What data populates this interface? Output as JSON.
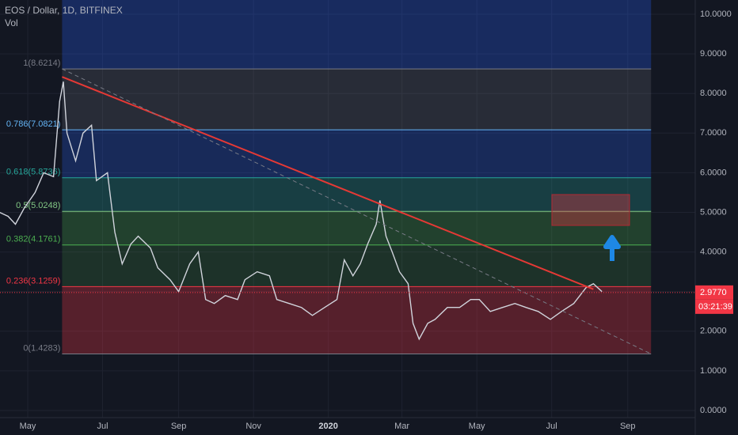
{
  "chart_data": {
    "type": "line",
    "title": "EOS / Dollar, 1D, BITFINEX",
    "subtitle": "Vol",
    "series": [
      {
        "name": "EOS / Dollar",
        "color": "#d1d4dc",
        "x": [
          -23,
          -16,
          -10,
          -3,
          6,
          13,
          21,
          26,
          29,
          32,
          39,
          45,
          52,
          56,
          65,
          71,
          77,
          84,
          90,
          100,
          106,
          116,
          123,
          132,
          139,
          145,
          152,
          161,
          171,
          177,
          187,
          197,
          203,
          213,
          223,
          232,
          242,
          252,
          258,
          265,
          271,
          277,
          284,
          287,
          292,
          297,
          303,
          310,
          314,
          319,
          326,
          332,
          342,
          352,
          361,
          368,
          377,
          387,
          397,
          406,
          416,
          426,
          435,
          445,
          455,
          461,
          468
        ],
        "values": [
          5.0,
          4.9,
          4.7,
          5.1,
          5.5,
          6.0,
          5.9,
          7.8,
          8.3,
          7.0,
          6.3,
          7.0,
          7.2,
          5.8,
          6.0,
          4.5,
          3.7,
          4.2,
          4.4,
          4.1,
          3.6,
          3.3,
          3.0,
          3.7,
          4.0,
          2.8,
          2.7,
          2.9,
          2.8,
          3.3,
          3.5,
          3.4,
          2.8,
          2.7,
          2.6,
          2.4,
          2.6,
          2.8,
          3.8,
          3.4,
          3.7,
          4.2,
          4.7,
          5.3,
          4.4,
          4.0,
          3.5,
          3.2,
          2.2,
          1.8,
          2.2,
          2.3,
          2.6,
          2.6,
          2.8,
          2.8,
          2.5,
          2.6,
          2.7,
          2.6,
          2.5,
          2.3,
          2.5,
          2.7,
          3.1,
          3.2,
          3.0
        ]
      }
    ],
    "fib_levels": [
      {
        "value": 8.6214,
        "label": "1(8.6214)",
        "color": "#787b86"
      },
      {
        "value": 7.0821,
        "label": "0.786(7.0821)",
        "color": "#64b5f6"
      },
      {
        "value": 5.8736,
        "label": "0.618(5.8736)",
        "color": "#26a69a"
      },
      {
        "value": 5.0248,
        "label": "0.5(5.0248)",
        "color": "#81c784"
      },
      {
        "value": 4.1761,
        "label": "0.382(4.1761)",
        "color": "#4caf50"
      },
      {
        "value": 3.1259,
        "label": "0.236(3.1259)",
        "color": "#f23645"
      },
      {
        "value": 1.4283,
        "label": "0(1.4283)",
        "color": "#787b86"
      }
    ],
    "trendlines": [
      {
        "color": "#e53935",
        "dashed": false,
        "x": [
          28,
          461
        ],
        "y": [
          8.42,
          3.06
        ]
      },
      {
        "color": "#787b86",
        "dashed": true,
        "x": [
          28,
          508
        ],
        "y": [
          8.6214,
          1.4283
        ]
      }
    ],
    "last_price": {
      "value": 2.977,
      "label": "2.9770"
    },
    "countdown": "03:21:39",
    "xlim": [
      -22.6,
      544
    ],
    "ylim": [
      0,
      10
    ],
    "xticks": [
      {
        "value": 0,
        "label": "May"
      },
      {
        "value": 61,
        "label": "Jul"
      },
      {
        "value": 123,
        "label": "Sep"
      },
      {
        "value": 184,
        "label": "Nov"
      },
      {
        "value": 245,
        "label": "2020"
      },
      {
        "value": 305,
        "label": "Mar"
      },
      {
        "value": 366,
        "label": "May"
      },
      {
        "value": 427,
        "label": "Jul"
      },
      {
        "value": 489,
        "label": "Sep"
      }
    ],
    "yticks": [
      {
        "value": 0,
        "label": "0.0000"
      },
      {
        "value": 1,
        "label": "1.0000"
      },
      {
        "value": 2,
        "label": "2.0000"
      },
      {
        "value": 3,
        "label": "3.0000"
      },
      {
        "value": 4,
        "label": "4.0000"
      },
      {
        "value": 5,
        "label": "5.0000"
      },
      {
        "value": 6,
        "label": "6.0000"
      },
      {
        "value": 7,
        "label": "7.0000"
      },
      {
        "value": 8,
        "label": "8.0000"
      },
      {
        "value": 9,
        "label": "9.0000"
      },
      {
        "value": 10,
        "label": "10.0000"
      }
    ],
    "grid": true
  }
}
